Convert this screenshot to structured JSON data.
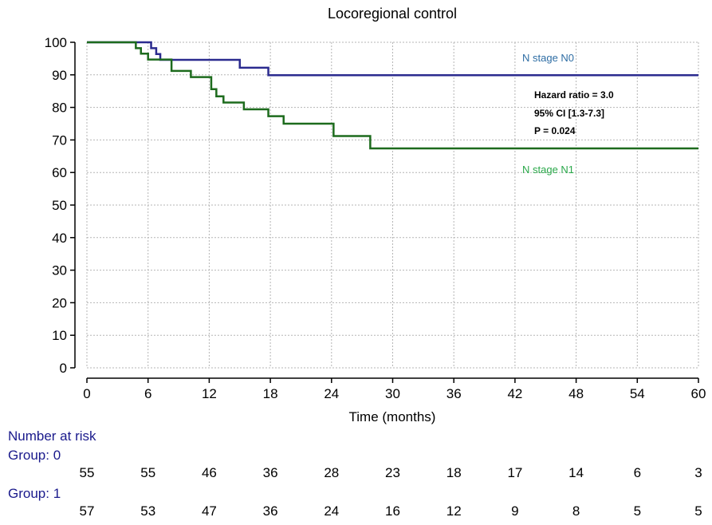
{
  "chart_data": {
    "type": "line",
    "title": "Locoregional control",
    "xlabel": "Time (months)",
    "ylabel": "",
    "xlim": [
      0,
      60
    ],
    "ylim": [
      0,
      100
    ],
    "xticks": [
      0,
      6,
      12,
      18,
      24,
      30,
      36,
      42,
      48,
      54,
      60
    ],
    "yticks": [
      0,
      10,
      20,
      30,
      40,
      50,
      60,
      70,
      80,
      90,
      100
    ],
    "grid": true,
    "series": [
      {
        "name": "N stage N0",
        "color": "#2b2b8f",
        "label_color": "#2e6da4",
        "x": [
          0,
          6.3,
          6.8,
          7.2,
          7.7,
          15.0,
          17.8,
          60
        ],
        "y": [
          100,
          98.2,
          96.4,
          94.6,
          94.6,
          92.2,
          89.9,
          89.9
        ]
      },
      {
        "name": "N stage N1",
        "color": "#1d6b1d",
        "label_color": "#2aa84a",
        "x": [
          0,
          4.8,
          5.3,
          6.0,
          8.3,
          10.2,
          12.2,
          12.7,
          13.4,
          15.4,
          17.8,
          19.3,
          20.6,
          24.2,
          27.8,
          60
        ],
        "y": [
          100,
          98.2,
          96.5,
          94.7,
          91.2,
          89.3,
          85.6,
          83.4,
          81.5,
          79.4,
          77.3,
          75.0,
          75.0,
          71.2,
          67.4,
          67.4
        ]
      }
    ],
    "annotations": [
      "Hazard ratio = 3.0",
      "95% CI [1.3-7.3]",
      "P = 0.024"
    ]
  },
  "risk_table": {
    "title": "Number at risk",
    "groups": [
      {
        "label": "Group: 0",
        "values": [
          55,
          55,
          46,
          36,
          28,
          23,
          18,
          17,
          14,
          6,
          3
        ]
      },
      {
        "label": "Group: 1",
        "values": [
          57,
          53,
          47,
          36,
          24,
          16,
          12,
          9,
          8,
          5,
          5
        ]
      }
    ]
  }
}
